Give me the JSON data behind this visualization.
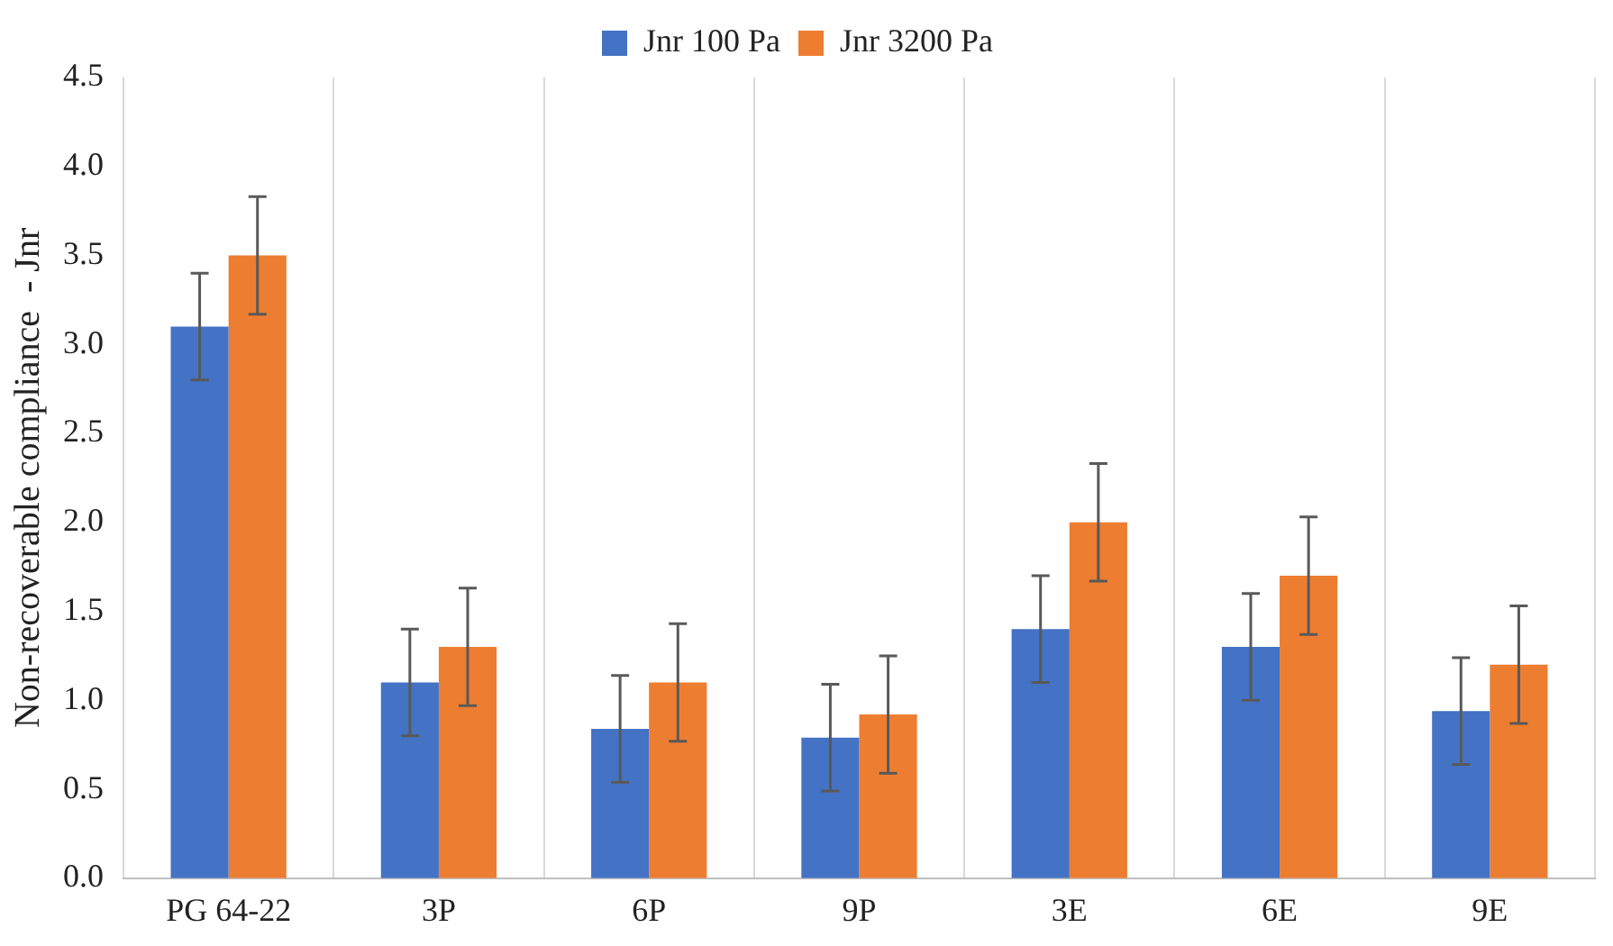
{
  "chart_data": {
    "type": "bar",
    "ylabel": "Non-recoverable compliance  - Jnr",
    "categories": [
      "PG 64-22",
      "3P",
      "6P",
      "9P",
      "3E",
      "6E",
      "9E"
    ],
    "series": [
      {
        "name": "Jnr 100 Pa",
        "color": "#4472c4",
        "values": [
          3.1,
          1.1,
          0.84,
          0.79,
          1.4,
          1.3,
          0.94
        ],
        "errors": [
          0.3,
          0.3,
          0.3,
          0.3,
          0.3,
          0.3,
          0.3
        ]
      },
      {
        "name": "Jnr 3200 Pa",
        "color": "#ed7d31",
        "values": [
          3.5,
          1.3,
          1.1,
          0.92,
          2.0,
          1.7,
          1.2
        ],
        "errors": [
          0.33,
          0.33,
          0.33,
          0.33,
          0.33,
          0.33,
          0.33
        ]
      }
    ],
    "ylim": [
      0,
      4.5
    ],
    "yticks": [
      {
        "value": 0,
        "label": "0.0"
      },
      0.5,
      {
        "value": 1,
        "label": "1.0"
      },
      1.5,
      {
        "value": 2,
        "label": "2.0"
      },
      2.5,
      {
        "value": 3,
        "label": "3.0"
      },
      3.5,
      {
        "value": 4,
        "label": "4.0"
      },
      4.5
    ],
    "grid": "x",
    "legend": "top"
  }
}
